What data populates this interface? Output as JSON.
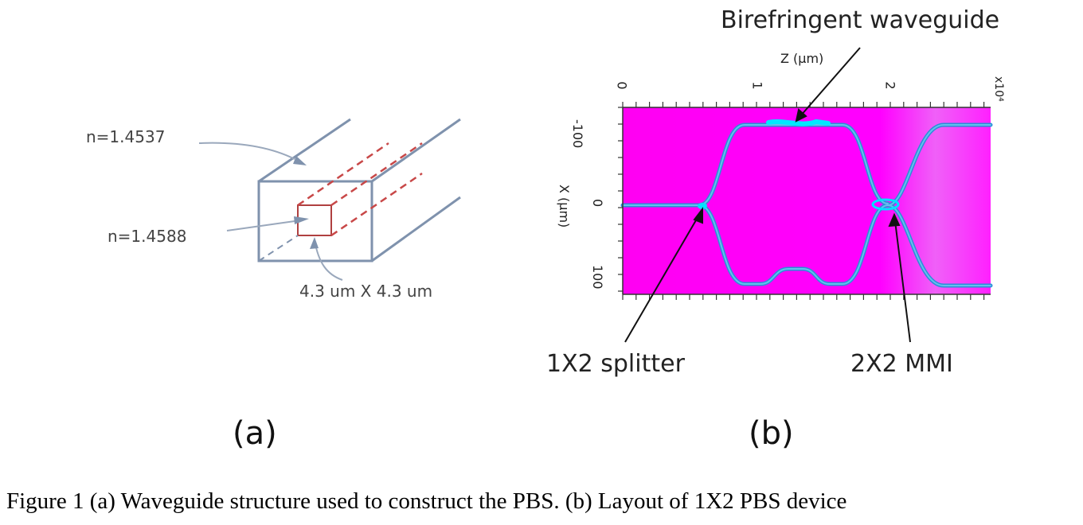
{
  "figure": {
    "panel_a": {
      "label": "(a)",
      "cladding_index": "n=1.4537",
      "core_index": "n=1.4588",
      "core_size": "4.3 um X 4.3 um"
    },
    "panel_b": {
      "label": "(b)",
      "z_axis_label": "Z (μm)",
      "z_multiplier": "x10⁴",
      "x_axis_label": "X (μm)",
      "z_ticks": [
        "0",
        "1",
        "2"
      ],
      "x_ticks": [
        "-100",
        "0",
        "100"
      ],
      "annotation_top": "Birefringent waveguide",
      "annotation_splitter": "1X2 splitter",
      "annotation_mmi": "2X2 MMI",
      "colors": {
        "background": "#ff00ff",
        "waveguide": "#2aa0e0",
        "field_peak": "#00e0ff"
      }
    },
    "caption": "Figure 1 (a) Waveguide structure used to construct the PBS. (b) Layout of 1X2 PBS device"
  }
}
